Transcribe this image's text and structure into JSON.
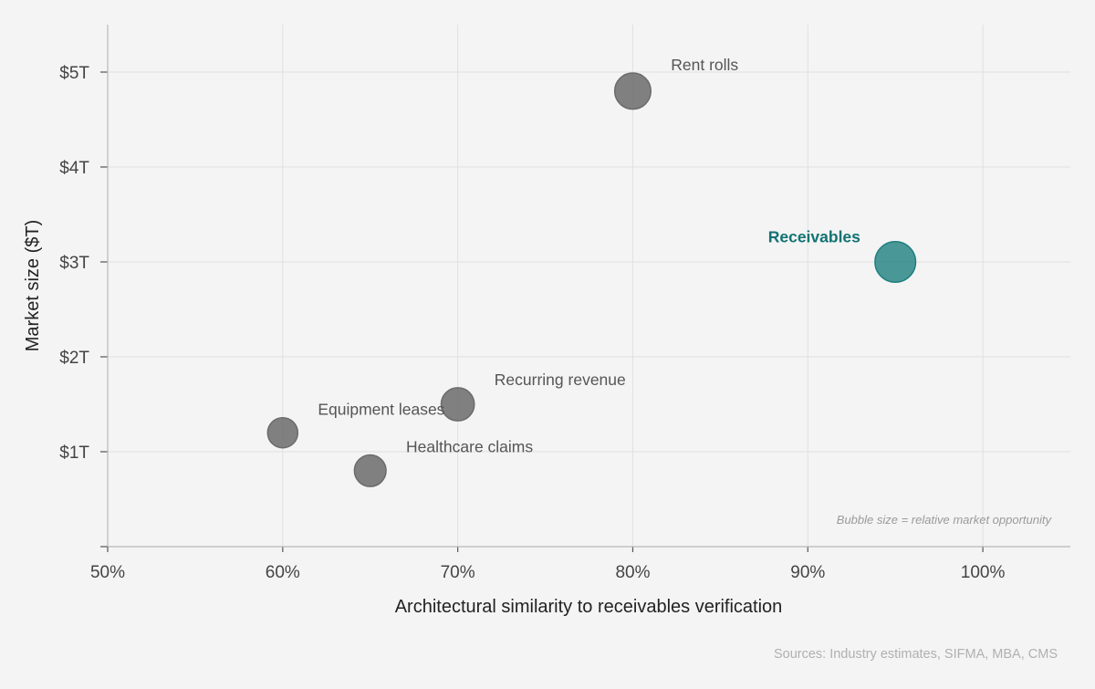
{
  "colors": {
    "default_bubble": "#6b6b6b",
    "highlight_bubble": "#1f8080",
    "highlight_label": "#127373"
  },
  "chart_data": {
    "type": "scatter",
    "xlabel": "Architectural similarity to receivables verification",
    "ylabel": "Market size ($T)",
    "xlim": [
      50,
      105
    ],
    "ylim": [
      0,
      5.5
    ],
    "x_ticks": [
      {
        "value": 50,
        "label": "50%"
      },
      {
        "value": 60,
        "label": "60%"
      },
      {
        "value": 70,
        "label": "70%"
      },
      {
        "value": 80,
        "label": "80%"
      },
      {
        "value": 90,
        "label": "90%"
      },
      {
        "value": 100,
        "label": "100%"
      }
    ],
    "y_ticks": [
      {
        "value": 0,
        "label": ""
      },
      {
        "value": 1,
        "label": "$1T"
      },
      {
        "value": 2,
        "label": "$2T"
      },
      {
        "value": 3,
        "label": "$3T"
      },
      {
        "value": 4,
        "label": "$4T"
      },
      {
        "value": 5,
        "label": "$5T"
      }
    ],
    "grid": true,
    "points": [
      {
        "name": "Equipment leases",
        "x": 60,
        "y": 1.2,
        "size": 1.0,
        "highlight": false
      },
      {
        "name": "Healthcare claims",
        "x": 65,
        "y": 0.8,
        "size": 1.05,
        "highlight": false
      },
      {
        "name": "Recurring revenue",
        "x": 70,
        "y": 1.5,
        "size": 1.1,
        "highlight": false
      },
      {
        "name": "Rent rolls",
        "x": 80,
        "y": 4.8,
        "size": 1.2,
        "highlight": false
      },
      {
        "name": "Receivables",
        "x": 95,
        "y": 3.0,
        "size": 1.35,
        "highlight": true
      }
    ],
    "annotation": "Bubble size = relative market opportunity",
    "source": "Sources: Industry estimates, SIFMA, MBA, CMS"
  }
}
